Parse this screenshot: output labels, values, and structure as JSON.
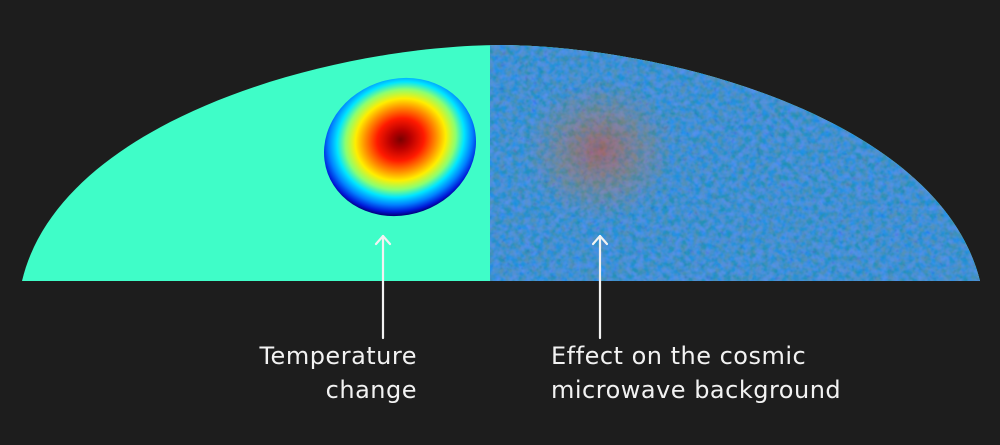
{
  "colors": {
    "background": "#1d1d1d",
    "uniform_field": "#3ffdc8",
    "text": "#f2f2f2",
    "arrow": "#f2f2f2"
  },
  "labels": {
    "left_line1": "Temperature",
    "left_line2": "change",
    "right_line1": "Effect on the cosmic",
    "right_line2": "microwave background"
  }
}
